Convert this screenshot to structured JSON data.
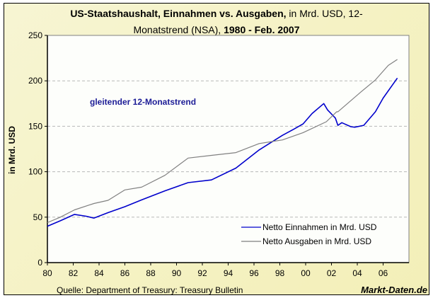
{
  "chart_data": {
    "type": "line",
    "title": {
      "part1_bold": "US-Staatshaushalt, Einnahmen vs. Ausgaben,",
      "part2": " in Mrd. USD, 12-",
      "part3": "Monatstrend (NSA), ",
      "part4_bold": "1980 - Feb. 2007"
    },
    "xlabel": "",
    "ylabel": "in Mrd. USD",
    "ylim": [
      0,
      250
    ],
    "xlim": [
      1980,
      2008
    ],
    "yticks": [
      0,
      50,
      100,
      150,
      200,
      250
    ],
    "xticks": [
      {
        "value": 1980,
        "label": "80"
      },
      {
        "value": 1982,
        "label": "82"
      },
      {
        "value": 1984,
        "label": "84"
      },
      {
        "value": 1986,
        "label": "86"
      },
      {
        "value": 1988,
        "label": "88"
      },
      {
        "value": 1990,
        "label": "90"
      },
      {
        "value": 1992,
        "label": "92"
      },
      {
        "value": 1994,
        "label": "94"
      },
      {
        "value": 1996,
        "label": "96"
      },
      {
        "value": 1998,
        "label": "98"
      },
      {
        "value": 2000,
        "label": "00"
      },
      {
        "value": 2002,
        "label": "02"
      },
      {
        "value": 2004,
        "label": "04"
      },
      {
        "value": 2006,
        "label": "06"
      }
    ],
    "grid": "horizontal dashed",
    "annotation": "gleitender 12-Monatstrend",
    "legend_position": "bottom-right",
    "series": [
      {
        "name": "Netto Einnahmen in Mrd. USD",
        "color": "#0000cc",
        "x": [
          1980,
          1981,
          1982.1,
          1983,
          1983.6,
          1984.7,
          1986,
          1987.3,
          1989.1,
          1990.9,
          1992.7,
          1994.6,
          1996.4,
          1998.2,
          1999.1,
          1999.8,
          2000.5,
          2001.4,
          2001.7,
          2002.3,
          2002.5,
          2002.8,
          2003.5,
          2003.8,
          2004.5,
          2005.4,
          2006,
          2007.1
        ],
        "values": [
          40,
          46,
          53,
          51,
          49,
          55,
          61.5,
          69,
          79,
          88,
          91,
          104,
          124,
          140,
          147,
          152.6,
          164,
          175,
          168,
          159,
          151,
          154,
          149.5,
          149,
          151,
          166,
          181,
          203
        ]
      },
      {
        "name": "Netto Ausgaben in Mrd. USD",
        "color": "#808080",
        "x": [
          1980,
          1981,
          1982.1,
          1983.6,
          1984.7,
          1986,
          1987.3,
          1989.1,
          1990.9,
          1992.7,
          1994.6,
          1996.4,
          1998.2,
          1999.8,
          2001.6,
          2002.4,
          2002.5,
          2004.3,
          2005.4,
          2006.4,
          2007.1
        ],
        "values": [
          44,
          50,
          58,
          65,
          68.5,
          80,
          83,
          96,
          115,
          118,
          121,
          131,
          135,
          143,
          155,
          166,
          166,
          188,
          201,
          217,
          223.5
        ]
      }
    ]
  },
  "footer": {
    "source": "Quelle: Department of Treasury: Treasury Bulletin",
    "brand": "Markt-Daten.de"
  }
}
